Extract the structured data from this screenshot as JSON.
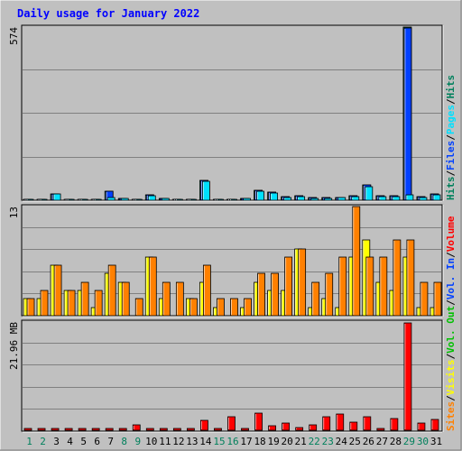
{
  "title": "Daily usage for January 2022",
  "colors": {
    "background": "#C0C0C0",
    "title": "#0000FF",
    "hits": "#00805C",
    "files": "#0040FF",
    "pages": "#00E0FF",
    "sites": "#FF8000",
    "visits": "#FFFF00",
    "kbin": "#0040FF",
    "kbout": "#00C000",
    "volume": "#FF0000",
    "weekday_label": "#000000",
    "weekend_label": "#00805C"
  },
  "chart_data": [
    {
      "type": "bar",
      "name": "hits-files-pages",
      "categories": [
        1,
        2,
        3,
        4,
        5,
        6,
        7,
        8,
        9,
        10,
        11,
        12,
        13,
        14,
        15,
        16,
        17,
        18,
        19,
        20,
        21,
        22,
        23,
        24,
        25,
        26,
        27,
        28,
        29,
        30,
        31
      ],
      "weekend_days": [
        1,
        2,
        8,
        9,
        15,
        16,
        22,
        23,
        29,
        30
      ],
      "y_max": 574,
      "y_max_label": "574",
      "legend": [
        "Hits",
        "/",
        "Files",
        "/",
        "Pages",
        "/",
        "Hits"
      ],
      "legend_colors": [
        "hits",
        "black",
        "files",
        "black",
        "pages",
        "black",
        "hits"
      ],
      "legend_text": "Hits/Files/Pages/Hits",
      "series": [
        {
          "name": "Hits",
          "color": "hits",
          "values": [
            3,
            4,
            22,
            4,
            4,
            3,
            30,
            6,
            3,
            18,
            6,
            4,
            3,
            65,
            2,
            3,
            6,
            32,
            26,
            12,
            14,
            8,
            8,
            10,
            14,
            50,
            14,
            14,
            574,
            12,
            20
          ]
        },
        {
          "name": "Files",
          "color": "files",
          "values": [
            3,
            4,
            22,
            4,
            4,
            3,
            30,
            6,
            3,
            18,
            6,
            4,
            3,
            65,
            2,
            3,
            6,
            32,
            26,
            12,
            14,
            8,
            8,
            10,
            14,
            50,
            14,
            14,
            570,
            12,
            20
          ]
        },
        {
          "name": "Pages",
          "color": "pages",
          "values": [
            2,
            3,
            20,
            3,
            3,
            2,
            8,
            5,
            2,
            16,
            5,
            3,
            2,
            62,
            2,
            2,
            5,
            30,
            24,
            10,
            12,
            6,
            6,
            8,
            12,
            44,
            12,
            12,
            18,
            10,
            18
          ]
        }
      ]
    },
    {
      "type": "bar",
      "name": "visits-sites",
      "categories": [
        1,
        2,
        3,
        4,
        5,
        6,
        7,
        8,
        9,
        10,
        11,
        12,
        13,
        14,
        15,
        16,
        17,
        18,
        19,
        20,
        21,
        22,
        23,
        24,
        25,
        26,
        27,
        28,
        29,
        30,
        31
      ],
      "y_max": 13,
      "y_max_label": "13",
      "legend": [
        "Visits",
        "/",
        "Sites"
      ],
      "legend_colors": [
        "visits",
        "black",
        "sites"
      ],
      "legend_text": "Visits/Sites",
      "series": [
        {
          "name": "Visits",
          "color": "visits",
          "values": [
            2,
            2,
            6,
            3,
            3,
            1,
            5,
            4,
            0,
            7,
            2,
            0,
            2,
            4,
            1,
            0,
            1,
            4,
            3,
            3,
            8,
            1,
            2,
            1,
            7,
            9,
            4,
            3,
            7,
            1,
            1
          ]
        },
        {
          "name": "Sites",
          "color": "sites",
          "values": [
            2,
            3,
            6,
            3,
            4,
            3,
            6,
            4,
            2,
            7,
            4,
            4,
            2,
            6,
            2,
            2,
            2,
            5,
            5,
            7,
            8,
            4,
            5,
            7,
            13,
            7,
            7,
            9,
            9,
            4,
            4
          ]
        }
      ]
    },
    {
      "type": "bar",
      "name": "volume",
      "categories": [
        1,
        2,
        3,
        4,
        5,
        6,
        7,
        8,
        9,
        10,
        11,
        12,
        13,
        14,
        15,
        16,
        17,
        18,
        19,
        20,
        21,
        22,
        23,
        24,
        25,
        26,
        27,
        28,
        29,
        30,
        31
      ],
      "y_max": 21.96,
      "y_max_label": "21.96 MB",
      "legend": [
        "Volume",
        "/",
        "Vol. In",
        "/",
        "Vol. Out",
        "/",
        "Sites",
        "/",
        "Visits",
        "/",
        "Pages",
        "/",
        "Files",
        "/",
        "Hits"
      ],
      "legend_text": "Volume/Vol. In/Vol. Out",
      "series": [
        {
          "name": "Volume",
          "color": "volume",
          "values": [
            0.05,
            0.05,
            0.1,
            0.05,
            0.05,
            0.05,
            0.3,
            0.1,
            1.1,
            0.05,
            0.05,
            0.05,
            0.05,
            2.0,
            0.1,
            2.7,
            0.3,
            3.5,
            0.9,
            1.5,
            0.5,
            1.1,
            2.8,
            3.3,
            1.7,
            2.7,
            0.2,
            2.4,
            21.96,
            1.5,
            2.3
          ]
        }
      ]
    }
  ],
  "right_legend": {
    "top": [
      {
        "text": "Hits",
        "color": "hits"
      },
      {
        "text": "/",
        "color": "black"
      },
      {
        "text": "Files",
        "color": "files"
      },
      {
        "text": "/",
        "color": "black"
      },
      {
        "text": "Pages",
        "color": "pages"
      },
      {
        "text": "/",
        "color": "black"
      },
      {
        "text": "Hits",
        "color": "hits"
      }
    ],
    "mid": [
      {
        "text": "Sites",
        "color": "sites"
      },
      {
        "text": "/",
        "color": "black"
      },
      {
        "text": "Visits",
        "color": "visits"
      },
      {
        "text": "/",
        "color": "black"
      },
      {
        "text": "Vol. Out",
        "color": "kbout"
      },
      {
        "text": "/",
        "color": "black"
      },
      {
        "text": "Vol. In",
        "color": "kbin"
      },
      {
        "text": "/",
        "color": "black"
      },
      {
        "text": "Volume",
        "color": "volume"
      }
    ]
  }
}
